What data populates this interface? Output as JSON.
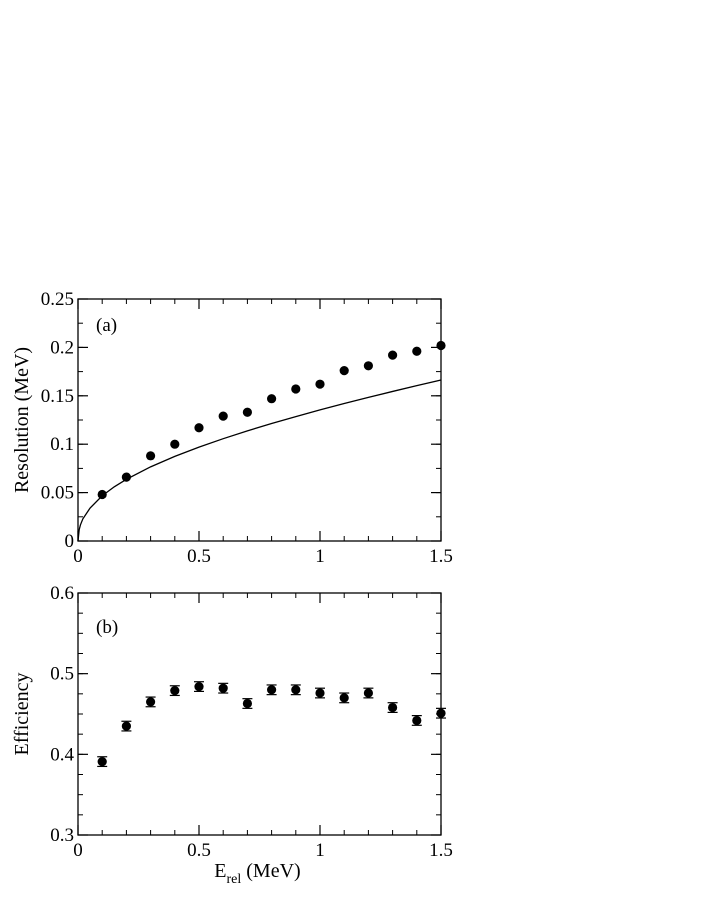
{
  "colors": {
    "marker": "#000000",
    "line": "#000000",
    "axes": "#000000",
    "background": "#ffffff"
  },
  "chart_data": [
    {
      "type": "scatter",
      "panel_label": "(a)",
      "title": "",
      "xlabel": "",
      "ylabel": "Resolution (MeV)",
      "xlim": [
        0,
        1.5
      ],
      "ylim": [
        0,
        0.25
      ],
      "xticks": [
        0,
        0.5,
        1,
        1.5
      ],
      "xtick_labels": [
        "0",
        "0.5",
        "1",
        "1.5"
      ],
      "yticks": [
        0,
        0.05,
        0.1,
        0.15,
        0.2,
        0.25
      ],
      "ytick_labels": [
        "0",
        "0.05",
        "0.1",
        "0.15",
        "0.2",
        "0.25"
      ],
      "grid": false,
      "series": [
        {
          "kind": "points",
          "x": [
            0.1,
            0.2,
            0.3,
            0.4,
            0.5,
            0.6,
            0.7,
            0.8,
            0.9,
            1.0,
            1.1,
            1.2,
            1.3,
            1.4,
            1.5
          ],
          "y": [
            0.048,
            0.066,
            0.088,
            0.1,
            0.117,
            0.129,
            0.133,
            0.147,
            0.157,
            0.162,
            0.176,
            0.181,
            0.192,
            0.196,
            0.202
          ]
        },
        {
          "kind": "fit-line",
          "x": [
            0,
            0.005,
            0.01,
            0.02,
            0.05,
            0.1,
            0.15,
            0.2,
            0.3,
            0.4,
            0.5,
            0.6,
            0.7,
            0.8,
            0.9,
            1.0,
            1.1,
            1.2,
            1.3,
            1.4,
            1.5
          ],
          "y": [
            0,
            0.0118,
            0.0166,
            0.0228,
            0.0341,
            0.0467,
            0.056,
            0.0637,
            0.0766,
            0.0874,
            0.097,
            0.1057,
            0.1138,
            0.1214,
            0.1285,
            0.1354,
            0.142,
            0.1484,
            0.1545,
            0.1605,
            0.1663
          ]
        }
      ]
    },
    {
      "type": "scatter",
      "panel_label": "(b)",
      "title": "",
      "xlabel_main": "E",
      "xlabel_sub": "rel",
      "xlabel_unit": " (MeV)",
      "ylabel": "Efficiency",
      "xlim": [
        0,
        1.5
      ],
      "ylim": [
        0.3,
        0.6
      ],
      "xticks": [
        0,
        0.5,
        1,
        1.5
      ],
      "xtick_labels": [
        "0",
        "0.5",
        "1",
        "1.5"
      ],
      "yticks": [
        0.3,
        0.4,
        0.5,
        0.6
      ],
      "ytick_labels": [
        "0.3",
        "0.4",
        "0.5",
        "0.6"
      ],
      "grid": false,
      "series": [
        {
          "kind": "points-with-errors",
          "x": [
            0.1,
            0.2,
            0.3,
            0.4,
            0.5,
            0.6,
            0.7,
            0.8,
            0.9,
            1.0,
            1.1,
            1.2,
            1.3,
            1.4,
            1.5
          ],
          "y": [
            0.391,
            0.435,
            0.465,
            0.479,
            0.484,
            0.482,
            0.463,
            0.48,
            0.48,
            0.476,
            0.47,
            0.476,
            0.458,
            0.442,
            0.451
          ],
          "yerr": [
            0.006,
            0.006,
            0.006,
            0.006,
            0.006,
            0.006,
            0.006,
            0.006,
            0.006,
            0.006,
            0.006,
            0.006,
            0.006,
            0.006,
            0.006
          ]
        }
      ]
    }
  ]
}
